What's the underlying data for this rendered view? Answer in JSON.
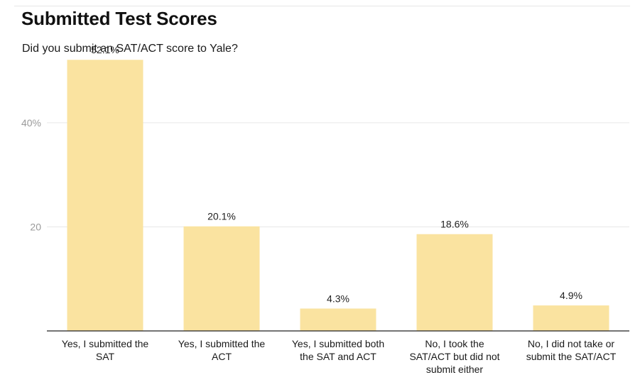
{
  "chart_data": {
    "type": "bar",
    "title": "Submitted Test Scores",
    "subtitle": "Did you submit an SAT/ACT score to Yale?",
    "xlabel": "",
    "ylabel": "",
    "categories": [
      "Yes, I submitted the SAT",
      "Yes, I submitted the ACT",
      "Yes, I submitted both the SAT and ACT",
      "No, I took the SAT/ACT but did not submit either",
      "No, I did not take or submit the SAT/ACT"
    ],
    "category_lines": [
      [
        "Yes, I submitted the",
        "SAT"
      ],
      [
        "Yes, I submitted the",
        "ACT"
      ],
      [
        "Yes, I submitted both",
        "the SAT and ACT"
      ],
      [
        "No, I took the",
        "SAT/ACT but did not",
        "submit either"
      ],
      [
        "No, I did not take or",
        "submit the SAT/ACT"
      ]
    ],
    "values": [
      52.1,
      20.1,
      4.3,
      18.6,
      4.9
    ],
    "value_labels": [
      "52.1%",
      "20.1%",
      "4.3%",
      "18.6%",
      "4.9%"
    ],
    "y_ticks": [
      {
        "value": 20,
        "label": "20"
      },
      {
        "value": 40,
        "label": "40%"
      }
    ],
    "ylim": [
      0,
      55
    ],
    "grid": true,
    "legend": "none",
    "bar_color": "#fae3a0",
    "grid_color": "#e8e8e8",
    "axis_color": "#222222"
  }
}
